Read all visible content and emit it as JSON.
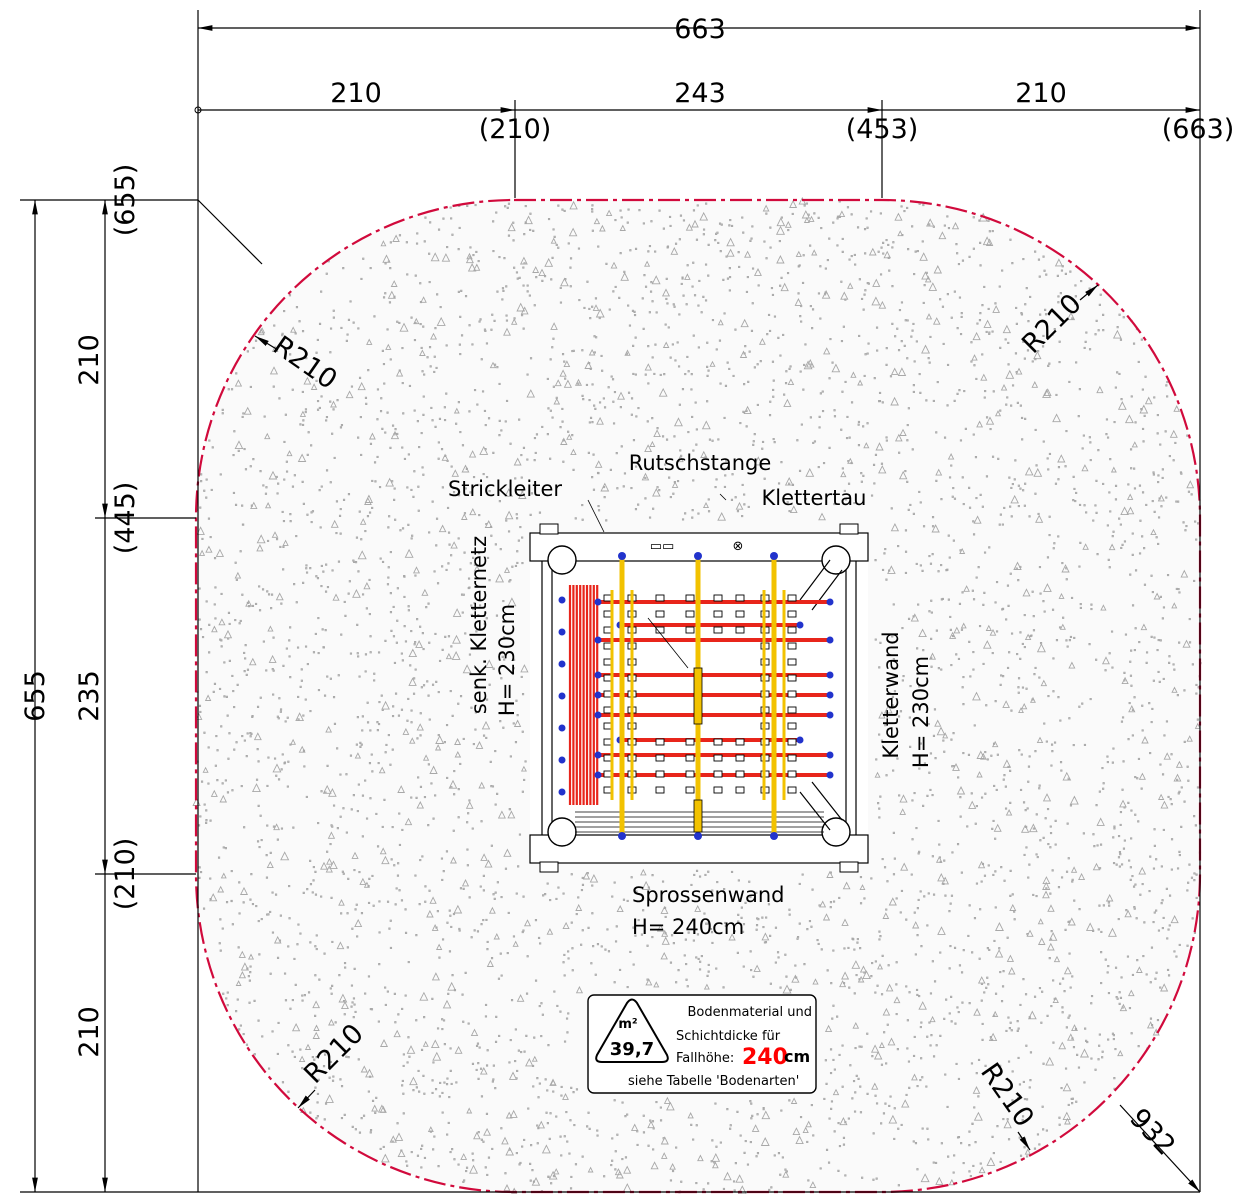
{
  "dimensions": {
    "total_width": "663",
    "seg_left": "210",
    "seg_mid": "243",
    "seg_right": "210",
    "cum_210": "(210)",
    "cum_453": "(453)",
    "cum_663": "(663)",
    "total_height": "655",
    "v_top": "210",
    "v_mid": "235",
    "v_bottom": "210",
    "cum_655": "(655)",
    "cum_445": "(445)",
    "cum_210_v": "(210)",
    "radius": "R210",
    "diagonal": "932"
  },
  "labels": {
    "rutschstange": "Rutschstange",
    "strickleiter": "Strickleiter",
    "klettertau": "Klettertau",
    "kletternetz_line1": "senk. Kletternetz",
    "kletternetz_line2": "H= 230cm",
    "kletterwand_line1": "Kletterwand",
    "kletterwand_line2": "H= 230cm",
    "sprossenwand_line1": "Sprossenwand",
    "sprossenwand_line2": "H= 240cm"
  },
  "info_box": {
    "area_unit": "m²",
    "area_value": "39,7",
    "line1": "Bodenmaterial und",
    "line2": "Schichtdicke für",
    "fallhoehe_label": "Fallhöhe:",
    "fallhoehe_value": "240",
    "fallhoehe_unit": "cm",
    "line4": "siehe Tabelle 'Bodenarten'"
  },
  "colors": {
    "boundary": "#d10a3c",
    "net": "#e8251b",
    "posts": "#f2c200",
    "bolts": "#2233cc",
    "gravel": "#a8a8a8",
    "highlight": "#ff0000"
  }
}
